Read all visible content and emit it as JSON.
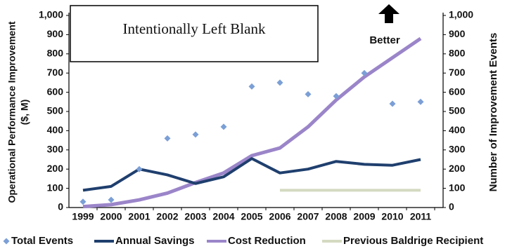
{
  "chart_data": {
    "type": "line",
    "annotations": [
      "Intentionally Left Blank",
      "Better"
    ],
    "ylabel": [
      "Operational Performance Improvement",
      "($, M)"
    ],
    "y2label": "Number of  Improvement Events",
    "categories": [
      "1999",
      "2000",
      "2001",
      "2002",
      "2003",
      "2004",
      "2005",
      "2006",
      "2007",
      "2008",
      "2009",
      "2010",
      "2011"
    ],
    "series": [
      {
        "name": "Total Events",
        "color": "#7b9fd6",
        "style": "markers",
        "axis": "y2",
        "values": [
          30,
          40,
          200,
          360,
          380,
          420,
          630,
          650,
          590,
          580,
          700,
          540,
          550
        ]
      },
      {
        "name": "Annual Savings",
        "color": "#1f3f6e",
        "style": "line",
        "values": [
          90,
          110,
          200,
          170,
          125,
          160,
          255,
          180,
          200,
          240,
          225,
          220,
          250
        ]
      },
      {
        "name": "Cost Reduction",
        "color": "#9b85c9",
        "style": "line",
        "values": [
          5,
          15,
          40,
          75,
          130,
          180,
          270,
          310,
          420,
          560,
          680,
          780,
          880
        ]
      },
      {
        "name": "Previous Baldrige Recipient",
        "color": "#d4dac0",
        "style": "line",
        "values": [
          null,
          null,
          null,
          null,
          null,
          null,
          null,
          90,
          90,
          90,
          90,
          90,
          90
        ]
      }
    ],
    "ylim": [
      0,
      1000
    ],
    "yticks": [
      0,
      100,
      200,
      300,
      400,
      500,
      600,
      700,
      800,
      900,
      {
        "value": 1000,
        "label": "1,000"
      }
    ],
    "y2lim": [
      0,
      1000
    ],
    "y2ticks": [
      0,
      100,
      200,
      300,
      400,
      500,
      600,
      700,
      800,
      900,
      {
        "value": 1000,
        "label": "1,000"
      }
    ]
  }
}
